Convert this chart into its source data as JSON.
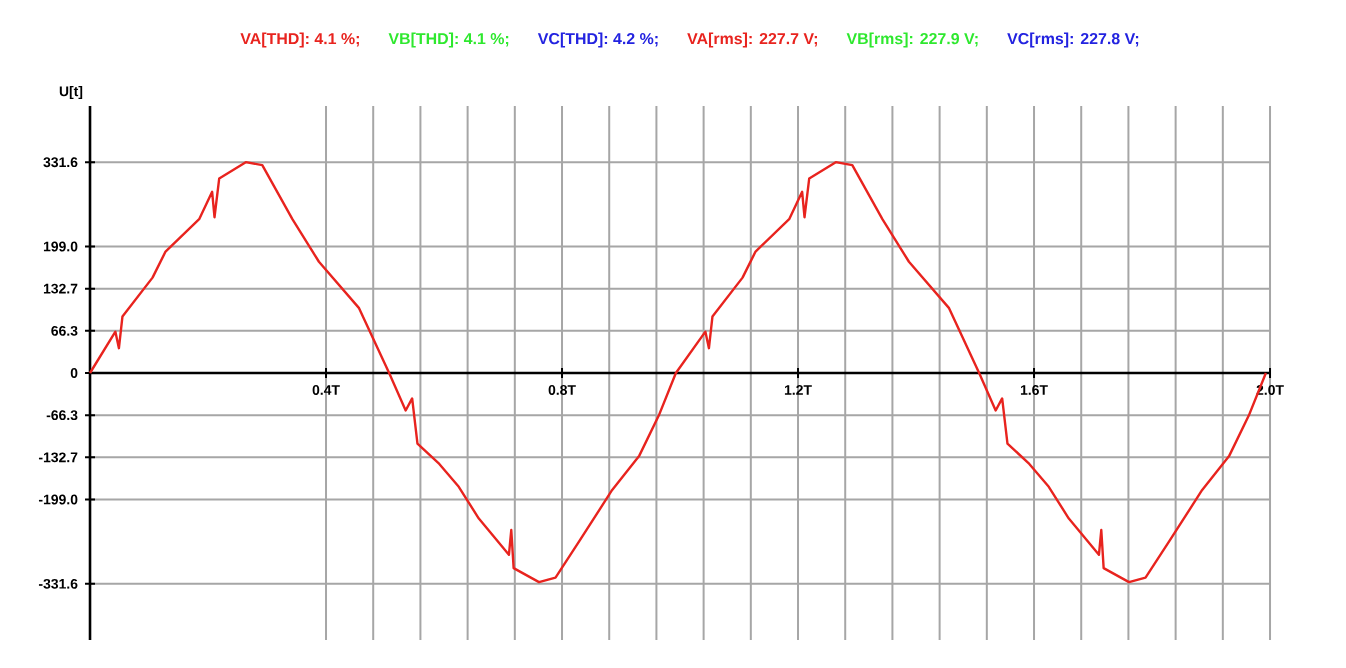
{
  "chart_data": {
    "type": "line",
    "ylabel": "U[t]",
    "annotations": [
      "VA[THD]: 4.1 %;",
      "VB[THD]: 4.1 %;",
      "VC[THD]: 4.2 %;",
      "VA[rms]: 227.7 V;",
      "VB[rms]: 227.9 V;",
      "VC[rms]: 227.8 V;"
    ],
    "xlim": [
      0,
      2.0
    ],
    "ylim": [
      -420,
      420
    ],
    "xticks": [
      {
        "value": 0.4,
        "label": "0.4T"
      },
      {
        "value": 0.8,
        "label": "0.8T"
      },
      {
        "value": 1.2,
        "label": "1.2T"
      },
      {
        "value": 1.6,
        "label": "1.6T"
      },
      {
        "value": 2.0,
        "label": "2.0T"
      }
    ],
    "yticks": [
      -331.6,
      {
        "value": -199,
        "label": "-199.0"
      },
      -132.7,
      -66.3,
      0,
      66.3,
      132.7,
      {
        "value": 199,
        "label": "199.0"
      },
      331.6
    ],
    "grid": true,
    "marker": "none",
    "line_style": "solid",
    "series": [
      {
        "color": "#e8231e",
        "x": [
          0.0,
          0.043,
          0.049,
          0.055,
          0.106,
          0.128,
          0.185,
          0.207,
          0.211,
          0.219,
          0.264,
          0.292,
          0.343,
          0.388,
          0.456,
          0.507,
          0.535,
          0.546,
          0.555,
          0.592,
          0.625,
          0.659,
          0.71,
          0.714,
          0.718,
          0.761,
          0.789,
          0.829,
          0.885,
          0.931,
          0.964,
          0.993,
          1.043,
          1.049,
          1.055,
          1.106,
          1.128,
          1.185,
          1.207,
          1.211,
          1.219,
          1.264,
          1.292,
          1.343,
          1.388,
          1.456,
          1.507,
          1.535,
          1.546,
          1.555,
          1.592,
          1.625,
          1.659,
          1.71,
          1.714,
          1.718,
          1.761,
          1.789,
          1.829,
          1.885,
          1.931,
          1.964,
          1.993
        ],
        "values": [
          0,
          65,
          39,
          89,
          150,
          191,
          242,
          285,
          245,
          306,
          331.6,
          327,
          242,
          175,
          102,
          0,
          -59,
          -40,
          -111,
          -143,
          -179,
          -229,
          -286,
          -247,
          -307,
          -329,
          -322,
          -265,
          -184,
          -130,
          -67,
          0,
          65,
          39,
          89,
          150,
          191,
          242,
          285,
          245,
          306,
          331.6,
          327,
          242,
          175,
          102,
          0,
          -59,
          -40,
          -111,
          -143,
          -179,
          -229,
          -286,
          -247,
          -307,
          -329,
          -322,
          -265,
          -184,
          -130,
          -67,
          0
        ]
      }
    ]
  }
}
